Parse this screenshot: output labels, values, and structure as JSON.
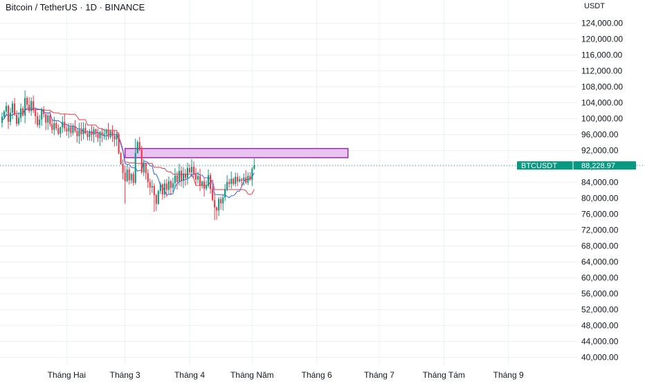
{
  "header": {
    "title": "Bitcoin / TetherUS · 1D · BINANCE",
    "unit": "USDT"
  },
  "colors": {
    "up": "#089981",
    "down": "#f23645",
    "grid": "#eef0f4",
    "baseline": "#f23645",
    "conversion": "#2962ff",
    "zone_fill": "#e9c4f3",
    "zone_border": "#9c27b0",
    "price_line": "#089981",
    "axis_text": "#131722"
  },
  "chart_data": {
    "type": "candlestick",
    "symbol": "BTCUSDT",
    "timeframe": "1D",
    "exchange": "BINANCE",
    "ylim": [
      38000,
      126000
    ],
    "y_ticks": [
      124000,
      120000,
      116000,
      112000,
      108000,
      104000,
      100000,
      96000,
      92000,
      88000,
      84000,
      80000,
      76000,
      72000,
      68000,
      64000,
      60000,
      56000,
      52000,
      48000,
      44000,
      40000
    ],
    "y_tick_labels": [
      "124,000.00",
      "120,000.00",
      "116,000.00",
      "112,000.00",
      "108,000.00",
      "104,000.00",
      "100,000.00",
      "96,000.00",
      "92,000.00",
      "88,000.00",
      "84,000.00",
      "80,000.00",
      "76,000.00",
      "72,000.00",
      "68,000.00",
      "64,000.00",
      "60,000.00",
      "56,000.00",
      "52,000.00",
      "48,000.00",
      "44,000.00",
      "40,000.00"
    ],
    "x_range_days": [
      -32,
      245
    ],
    "x_ticks": [
      {
        "label": "Tháng Hai",
        "day": 0
      },
      {
        "label": "Tháng 3",
        "day": 28
      },
      {
        "label": "Tháng 4",
        "day": 59
      },
      {
        "label": "Tháng Năm",
        "day": 89
      },
      {
        "label": "Tháng 6",
        "day": 120
      },
      {
        "label": "Tháng 7",
        "day": 150
      },
      {
        "label": "Tháng Tám",
        "day": 181
      },
      {
        "label": "Tháng 9",
        "day": 212
      }
    ],
    "last_price": 88228.97,
    "last_price_label": "88,228.97",
    "ticker_label": "BTCUSDT",
    "closes": [
      100500,
      101800,
      103200,
      99200,
      101500,
      103800,
      101000,
      98700,
      100200,
      102600,
      100800,
      105200,
      103500,
      101900,
      104400,
      102100,
      100600,
      98400,
      99800,
      102300,
      101100,
      99000,
      100800,
      98600,
      97200,
      98900,
      97600,
      96200,
      97800,
      99200,
      97500,
      96800,
      97900,
      96400,
      98100,
      96900,
      95600,
      97200,
      96100,
      97600,
      96300,
      95400,
      96800,
      95900,
      97300,
      96200,
      95100,
      96600,
      95800,
      96200,
      97100,
      95400,
      96900,
      95600,
      94800,
      96100,
      91300,
      88600,
      86400,
      84300,
      87200,
      84500,
      86100,
      83900,
      91400,
      94100,
      92200,
      86500,
      88800,
      86300,
      84100,
      82700,
      83100,
      80800,
      78600,
      81800,
      83500,
      80900,
      83700,
      82100,
      84300,
      82600,
      83800,
      85700,
      84100,
      86900,
      84400,
      86200,
      85100,
      87600,
      86500,
      87900,
      86100,
      84700,
      85600,
      83300,
      84200,
      82400,
      83100,
      85800,
      82300,
      79500,
      77700,
      76900,
      79800,
      78700,
      80200,
      82300,
      84100,
      83600,
      84900,
      83600,
      85400,
      84200,
      84800,
      84400,
      85200,
      83900,
      85600,
      84600,
      87400,
      88228.97
    ],
    "zone": {
      "day_start": 28,
      "day_end": 135,
      "high": 92500,
      "low": 90200
    },
    "indicators": {
      "baseline_name": "",
      "conversion_name": ""
    }
  }
}
